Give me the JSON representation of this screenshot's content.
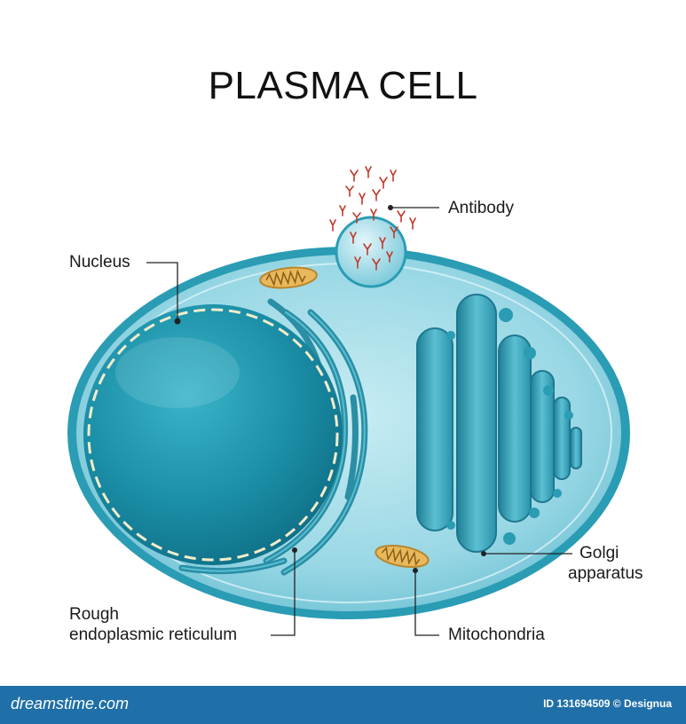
{
  "title": "PLASMA CELL",
  "labels": {
    "antibody": "Antibody",
    "nucleus": "Nucleus",
    "golgi_line1": "Golgi",
    "golgi_line2": "apparatus",
    "rer_line1": "Rough",
    "rer_line2": "endoplasmic reticulum",
    "mitochondria": "Mitochondria"
  },
  "footer": {
    "logo": "dreamstime.com",
    "id_text": "ID 131694509 © Designua"
  },
  "colors": {
    "cytoplasm": "#8fd3e0",
    "membrane": "#2a9cb4",
    "nucleus": "#1e8aa2",
    "golgi": "#3aa9bf",
    "mitochondria": "#e8b85a",
    "antibody": "#c0392b",
    "footer": "#1f6fa8"
  }
}
